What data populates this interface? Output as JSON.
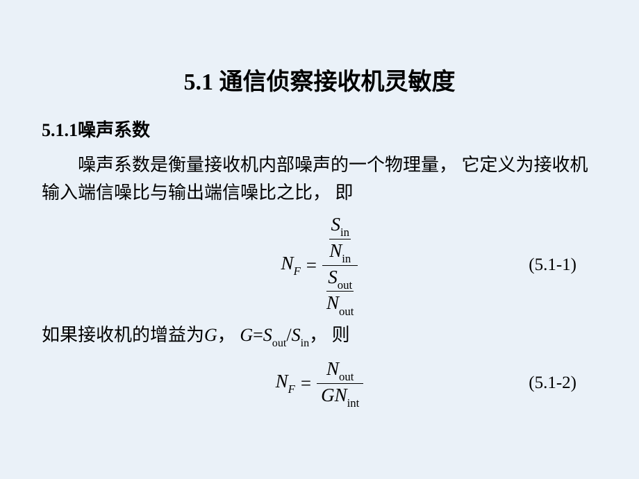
{
  "title": "5.1  通信侦察接收机灵敏度",
  "subhead": "5.1.1噪声系数",
  "para1": "噪声系数是衡量接收机内部噪声的一个物理量， 它定义为接收机输入端信噪比与输出端信噪比之比， 即",
  "eq1": {
    "lhs_sym": "N",
    "lhs_sub": "F",
    "eq": "=",
    "top_num_sym": "S",
    "top_num_sub": "in",
    "top_den_sym": "N",
    "top_den_sub": "in",
    "bot_num_sym": "S",
    "bot_num_sub": "out",
    "bot_den_sym": "N",
    "bot_den_sub": "out",
    "number": "(5.1-1)"
  },
  "para2_a": "如果接收机的增益为",
  "para2_G": "G",
  "para2_b": "， ",
  "para2_GeqL": "G",
  "para2_eq": "=",
  "para2_Sout_sym": "S",
  "para2_Sout_sub": "out",
  "para2_slash": "/",
  "para2_Sin_sym": "S",
  "para2_Sin_sub": "in",
  "para2_c": "， 则",
  "eq2": {
    "lhs_sym": "N",
    "lhs_sub": "F",
    "eq": "=",
    "num_sym": "N",
    "num_sub": "out",
    "den_a_sym": "G",
    "den_b_sym": "N",
    "den_b_sub": "int",
    "number": "(5.1-2)"
  },
  "style": {
    "background": "#eaf1f8",
    "text_color": "#000000",
    "title_fontsize": 34,
    "body_fontsize": 26,
    "math_fontsize": 27,
    "font_body": "SimSun",
    "font_math": "Times New Roman"
  }
}
